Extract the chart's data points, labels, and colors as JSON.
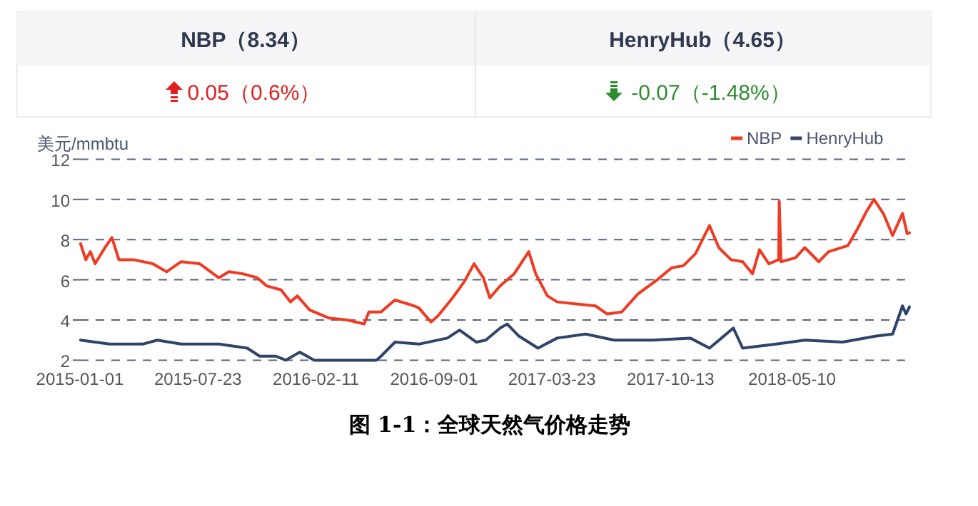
{
  "chart_data": [
    {
      "type": "other",
      "annotations": [
        "NBP（8.34）",
        "0.05（0.6%）",
        "HenryHub（4.65）",
        "-0.07（-1.48%）"
      ]
    },
    {
      "type": "line",
      "title": "图 1-1：全球天然气价格走势",
      "ylabel": "美元/mmbtu",
      "legend": "top right",
      "grid": "y",
      "line_style": "solid",
      "marker": "none",
      "xlim": [
        "2015-01-01",
        "2018-11-28"
      ],
      "xticks": [
        "2015-01-01",
        "2015-07-23",
        "2016-02-11",
        "2016-09-01",
        "2017-03-23",
        "2017-10-13",
        "2018-05-10"
      ],
      "ylim": [
        2,
        12
      ],
      "yticks": [
        2,
        4,
        6,
        8,
        10,
        12
      ],
      "series": [
        {
          "name": "NBP",
          "color": "#ee3b23",
          "x": [
            "2015-01-02",
            "2015-01-11",
            "2015-01-19",
            "2015-01-27",
            "2015-02-13",
            "2015-02-25",
            "2015-03-09",
            "2015-04-03",
            "2015-05-06",
            "2015-05-30",
            "2015-06-24",
            "2015-07-26",
            "2015-08-28",
            "2015-09-14",
            "2015-10-08",
            "2015-11-02",
            "2015-11-18",
            "2015-12-13",
            "2015-12-29",
            "2016-01-10",
            "2016-01-31",
            "2016-03-04",
            "2016-04-05",
            "2016-05-04",
            "2016-05-12",
            "2016-06-02",
            "2016-06-26",
            "2016-07-29",
            "2016-08-06",
            "2016-08-27",
            "2016-09-08",
            "2016-10-03",
            "2016-10-23",
            "2016-11-09",
            "2016-11-25",
            "2016-12-06",
            "2016-12-24",
            "2017-01-17",
            "2017-02-11",
            "2017-02-23",
            "2017-03-15",
            "2017-04-01",
            "2017-05-04",
            "2017-06-06",
            "2017-06-26",
            "2017-07-21",
            "2017-08-18",
            "2017-09-20",
            "2017-10-15",
            "2017-11-04",
            "2017-11-25",
            "2017-12-19",
            "2018-01-04",
            "2018-01-25",
            "2018-02-14",
            "2018-03-03",
            "2018-03-15",
            "2018-03-31",
            "2018-04-17",
            "2018-04-18",
            "2018-04-21",
            "2018-05-16",
            "2018-06-01",
            "2018-06-25",
            "2018-07-12",
            "2018-08-14",
            "2018-08-30",
            "2018-09-15",
            "2018-09-28",
            "2018-10-14",
            "2018-10-30",
            "2018-11-16",
            "2018-11-24",
            "2018-11-28"
          ],
          "values": [
            7.8,
            7.0,
            7.4,
            6.8,
            7.6,
            8.1,
            7.0,
            7.0,
            6.8,
            6.4,
            6.9,
            6.8,
            6.1,
            6.4,
            6.3,
            6.1,
            5.7,
            5.5,
            4.9,
            5.2,
            4.5,
            4.1,
            4.0,
            3.8,
            4.4,
            4.4,
            5.0,
            4.7,
            4.6,
            3.9,
            4.2,
            5.1,
            5.9,
            6.8,
            6.1,
            5.1,
            5.7,
            6.3,
            7.4,
            6.3,
            5.2,
            4.9,
            4.8,
            4.7,
            4.3,
            4.4,
            5.3,
            6.0,
            6.6,
            6.7,
            7.3,
            8.7,
            7.6,
            7.0,
            6.9,
            6.3,
            7.5,
            6.8,
            7.0,
            9.9,
            6.9,
            7.1,
            7.6,
            6.9,
            7.4,
            7.7,
            8.5,
            9.4,
            10.0,
            9.3,
            8.2,
            9.3,
            8.3,
            8.34
          ]
        },
        {
          "name": "HenryHub",
          "color": "#2f4468",
          "x": [
            "2015-01-02",
            "2015-02-21",
            "2015-04-19",
            "2015-05-14",
            "2015-06-24",
            "2015-08-28",
            "2015-10-16",
            "2015-11-06",
            "2015-12-04",
            "2015-12-21",
            "2016-01-14",
            "2016-02-08",
            "2016-04-30",
            "2016-05-25",
            "2016-06-02",
            "2016-06-26",
            "2016-08-06",
            "2016-09-24",
            "2016-10-15",
            "2016-11-13",
            "2016-11-29",
            "2016-12-24",
            "2017-01-05",
            "2017-01-25",
            "2017-02-27",
            "2017-04-01",
            "2017-05-20",
            "2017-07-08",
            "2017-09-12",
            "2017-11-16",
            "2017-12-19",
            "2018-01-29",
            "2018-02-14",
            "2018-04-13",
            "2018-06-01",
            "2018-08-05",
            "2018-10-02",
            "2018-10-30",
            "2018-11-16",
            "2018-11-22",
            "2018-11-28"
          ],
          "values": [
            3.0,
            2.8,
            2.8,
            3.0,
            2.8,
            2.8,
            2.6,
            2.2,
            2.2,
            2.0,
            2.4,
            2.0,
            2.0,
            2.0,
            2.2,
            2.9,
            2.8,
            3.1,
            3.5,
            2.9,
            3.0,
            3.6,
            3.8,
            3.2,
            2.6,
            3.1,
            3.3,
            3.0,
            3.0,
            3.1,
            2.6,
            3.6,
            2.6,
            2.8,
            3.0,
            2.9,
            3.2,
            3.3,
            4.7,
            4.3,
            4.65
          ]
        }
      ]
    }
  ]
}
